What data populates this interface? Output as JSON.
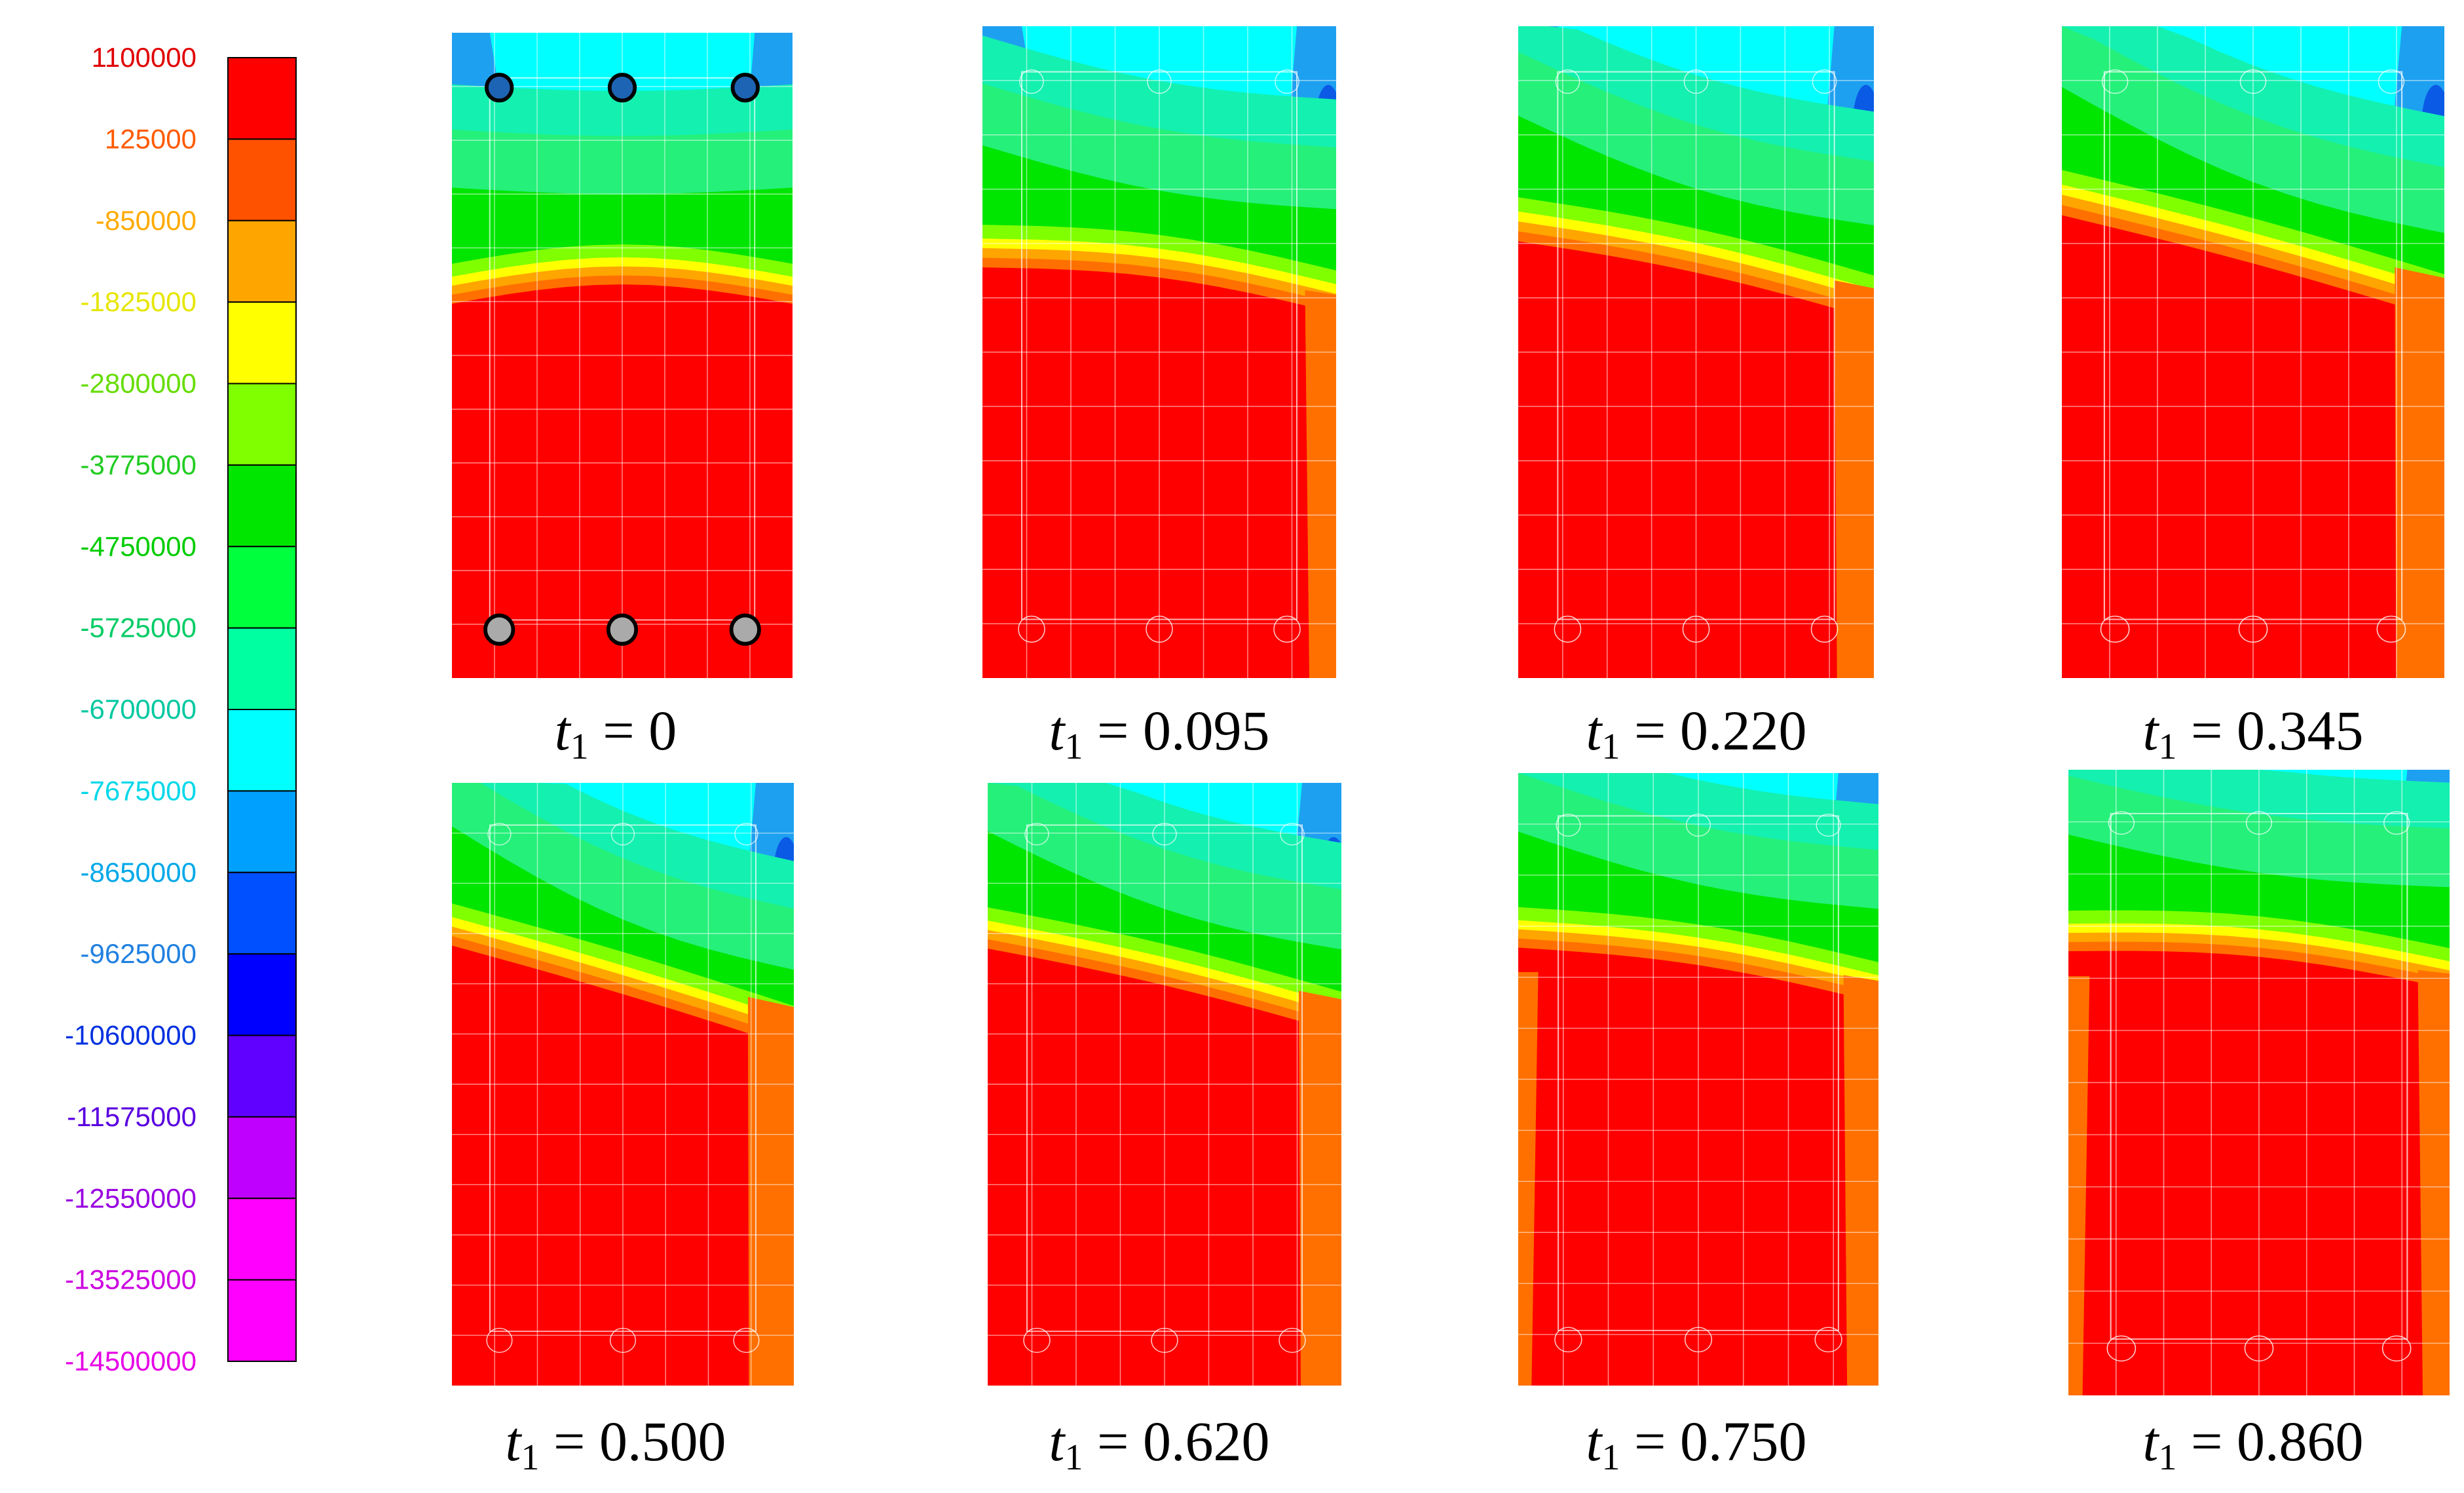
{
  "colors": {
    "red": "#FF0000",
    "orange": "#FF7000",
    "orange_light": "#FFA500",
    "yellow": "#FFFF00",
    "yellow_green": "#80FF00",
    "green": "#00E600",
    "green_light": "#25F07A",
    "teal": "#14F0B0",
    "cyan": "#00FFFF",
    "sky": "#1EA0F0",
    "blue": "#0A5AE6",
    "outline": "#000000"
  },
  "chart_data": {
    "type": "heatmap",
    "title": "",
    "legend": {
      "position": "left",
      "labels": [
        "1100000",
        "125000",
        "-850000",
        "-1825000",
        "-2800000",
        "-3775000",
        "-4750000",
        "-5725000",
        "-6700000",
        "-7675000",
        "-8650000",
        "-9625000",
        "-10600000",
        "-11575000",
        "-12550000",
        "-13525000",
        "-14500000"
      ],
      "label_colors": [
        "#E00000",
        "#FF5A00",
        "#FFAA00",
        "#E6E600",
        "#66DD00",
        "#22CC22",
        "#00CC00",
        "#00CC66",
        "#00C8A0",
        "#00D8E8",
        "#00A8E8",
        "#2080E0",
        "#0030E0",
        "#5A00E0",
        "#9900E0",
        "#CC00E0",
        "#E600E6"
      ],
      "swatches": [
        "#FF0000",
        "#FF5200",
        "#FFA500",
        "#FFFF00",
        "#80FF00",
        "#00E600",
        "#00FF3C",
        "#00FFA0",
        "#00FFFF",
        "#00A0FF",
        "#0050FF",
        "#0000FF",
        "#6000FF",
        "#C000FF",
        "#FF00FF",
        "#FF00FF"
      ],
      "range": [
        -14500000,
        1100000
      ]
    },
    "panels": [
      {
        "label_var": "t",
        "label_sub": "1",
        "value": "0",
        "bars_top_fill": "#1E64B4",
        "bars_bottom_fill": "#AAAAAA",
        "bars_visible": true
      },
      {
        "label_var": "t",
        "label_sub": "1",
        "value": "0.095",
        "bars_visible": false
      },
      {
        "label_var": "t",
        "label_sub": "1",
        "value": "0.220",
        "bars_visible": false
      },
      {
        "label_var": "t",
        "label_sub": "1",
        "value": "0.345",
        "bars_visible": false
      },
      {
        "label_var": "t",
        "label_sub": "1",
        "value": "0.500",
        "bars_visible": false
      },
      {
        "label_var": "t",
        "label_sub": "1",
        "value": "0.620",
        "bars_visible": false
      },
      {
        "label_var": "t",
        "label_sub": "1",
        "value": "0.750",
        "bars_visible": false
      },
      {
        "label_var": "t",
        "label_sub": "1",
        "value": "0.860",
        "bars_visible": false
      }
    ],
    "equals_sign": "="
  }
}
